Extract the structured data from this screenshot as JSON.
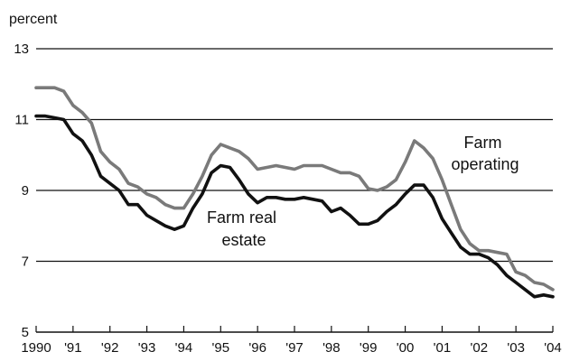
{
  "chart_data": {
    "type": "line",
    "title": "",
    "xlabel": "",
    "ylabel": "percent",
    "ylim": [
      5,
      13
    ],
    "xlim": [
      1990,
      2004
    ],
    "y_ticks": [
      {
        "value": 5,
        "label": "5"
      },
      {
        "value": 7,
        "label": "7"
      },
      {
        "value": 9,
        "label": "9"
      },
      {
        "value": 11,
        "label": "11"
      },
      {
        "value": 13,
        "label": "13"
      }
    ],
    "x_ticks": [
      {
        "value": 1990,
        "label": "1990"
      },
      {
        "value": 1991,
        "label": "'91"
      },
      {
        "value": 1992,
        "label": "'92"
      },
      {
        "value": 1993,
        "label": "'93"
      },
      {
        "value": 1994,
        "label": "'94"
      },
      {
        "value": 1995,
        "label": "'95"
      },
      {
        "value": 1996,
        "label": "'96"
      },
      {
        "value": 1997,
        "label": "'97"
      },
      {
        "value": 1998,
        "label": "'98"
      },
      {
        "value": 1999,
        "label": "'99"
      },
      {
        "value": 2000,
        "label": "'00"
      },
      {
        "value": 2001,
        "label": "'01"
      },
      {
        "value": 2002,
        "label": "'02"
      },
      {
        "value": 2003,
        "label": "'03"
      },
      {
        "value": 2004,
        "label": "'04"
      }
    ],
    "grid": "horizontal",
    "series": [
      {
        "name": "Farm operating",
        "color": "#7a7a7a",
        "points": [
          [
            1990.0,
            11.9
          ],
          [
            1990.25,
            11.9
          ],
          [
            1990.5,
            11.9
          ],
          [
            1990.75,
            11.8
          ],
          [
            1991.0,
            11.4
          ],
          [
            1991.25,
            11.2
          ],
          [
            1991.5,
            10.9
          ],
          [
            1991.75,
            10.1
          ],
          [
            1992.0,
            9.8
          ],
          [
            1992.25,
            9.6
          ],
          [
            1992.5,
            9.2
          ],
          [
            1992.75,
            9.1
          ],
          [
            1993.0,
            8.9
          ],
          [
            1993.25,
            8.8
          ],
          [
            1993.5,
            8.6
          ],
          [
            1993.75,
            8.5
          ],
          [
            1994.0,
            8.5
          ],
          [
            1994.25,
            8.9
          ],
          [
            1994.5,
            9.4
          ],
          [
            1994.75,
            10.0
          ],
          [
            1995.0,
            10.3
          ],
          [
            1995.25,
            10.2
          ],
          [
            1995.5,
            10.1
          ],
          [
            1995.75,
            9.9
          ],
          [
            1996.0,
            9.6
          ],
          [
            1996.25,
            9.65
          ],
          [
            1996.5,
            9.7
          ],
          [
            1996.75,
            9.65
          ],
          [
            1997.0,
            9.6
          ],
          [
            1997.25,
            9.7
          ],
          [
            1997.5,
            9.7
          ],
          [
            1997.75,
            9.7
          ],
          [
            1998.0,
            9.6
          ],
          [
            1998.25,
            9.5
          ],
          [
            1998.5,
            9.5
          ],
          [
            1998.75,
            9.4
          ],
          [
            1999.0,
            9.05
          ],
          [
            1999.25,
            9.0
          ],
          [
            1999.5,
            9.1
          ],
          [
            1999.75,
            9.3
          ],
          [
            2000.0,
            9.8
          ],
          [
            2000.25,
            10.4
          ],
          [
            2000.5,
            10.2
          ],
          [
            2000.75,
            9.9
          ],
          [
            2001.0,
            9.3
          ],
          [
            2001.25,
            8.6
          ],
          [
            2001.5,
            7.9
          ],
          [
            2001.75,
            7.5
          ],
          [
            2002.0,
            7.3
          ],
          [
            2002.25,
            7.3
          ],
          [
            2002.5,
            7.25
          ],
          [
            2002.75,
            7.2
          ],
          [
            2003.0,
            6.7
          ],
          [
            2003.25,
            6.6
          ],
          [
            2003.5,
            6.4
          ],
          [
            2003.75,
            6.35
          ],
          [
            2004.0,
            6.2
          ]
        ]
      },
      {
        "name": "Farm real estate",
        "color": "#111111",
        "points": [
          [
            1990.0,
            11.1
          ],
          [
            1990.25,
            11.1
          ],
          [
            1990.5,
            11.05
          ],
          [
            1990.75,
            11.0
          ],
          [
            1991.0,
            10.6
          ],
          [
            1991.25,
            10.4
          ],
          [
            1991.5,
            10.0
          ],
          [
            1991.75,
            9.4
          ],
          [
            1992.0,
            9.2
          ],
          [
            1992.25,
            9.0
          ],
          [
            1992.5,
            8.6
          ],
          [
            1992.75,
            8.6
          ],
          [
            1993.0,
            8.3
          ],
          [
            1993.25,
            8.15
          ],
          [
            1993.5,
            8.0
          ],
          [
            1993.75,
            7.9
          ],
          [
            1994.0,
            8.0
          ],
          [
            1994.25,
            8.5
          ],
          [
            1994.5,
            8.9
          ],
          [
            1994.75,
            9.5
          ],
          [
            1995.0,
            9.7
          ],
          [
            1995.25,
            9.65
          ],
          [
            1995.5,
            9.3
          ],
          [
            1995.75,
            8.9
          ],
          [
            1996.0,
            8.65
          ],
          [
            1996.25,
            8.8
          ],
          [
            1996.5,
            8.8
          ],
          [
            1996.75,
            8.75
          ],
          [
            1997.0,
            8.75
          ],
          [
            1997.25,
            8.8
          ],
          [
            1997.5,
            8.75
          ],
          [
            1997.75,
            8.7
          ],
          [
            1998.0,
            8.4
          ],
          [
            1998.25,
            8.5
          ],
          [
            1998.5,
            8.3
          ],
          [
            1998.75,
            8.05
          ],
          [
            1999.0,
            8.05
          ],
          [
            1999.25,
            8.15
          ],
          [
            1999.5,
            8.4
          ],
          [
            1999.75,
            8.6
          ],
          [
            2000.0,
            8.9
          ],
          [
            2000.25,
            9.15
          ],
          [
            2000.5,
            9.15
          ],
          [
            2000.75,
            8.8
          ],
          [
            2001.0,
            8.2
          ],
          [
            2001.25,
            7.8
          ],
          [
            2001.5,
            7.4
          ],
          [
            2001.75,
            7.2
          ],
          [
            2002.0,
            7.2
          ],
          [
            2002.25,
            7.1
          ],
          [
            2002.5,
            6.9
          ],
          [
            2002.75,
            6.6
          ],
          [
            2003.0,
            6.4
          ],
          [
            2003.25,
            6.2
          ],
          [
            2003.5,
            6.0
          ],
          [
            2003.75,
            6.05
          ],
          [
            2004.0,
            6.0
          ]
        ]
      }
    ],
    "annotations": [
      {
        "series": "Farm operating",
        "lines": [
          "Farm",
          "operating"
        ]
      },
      {
        "series": "Farm real estate",
        "lines": [
          "Farm real",
          "estate"
        ]
      }
    ]
  }
}
